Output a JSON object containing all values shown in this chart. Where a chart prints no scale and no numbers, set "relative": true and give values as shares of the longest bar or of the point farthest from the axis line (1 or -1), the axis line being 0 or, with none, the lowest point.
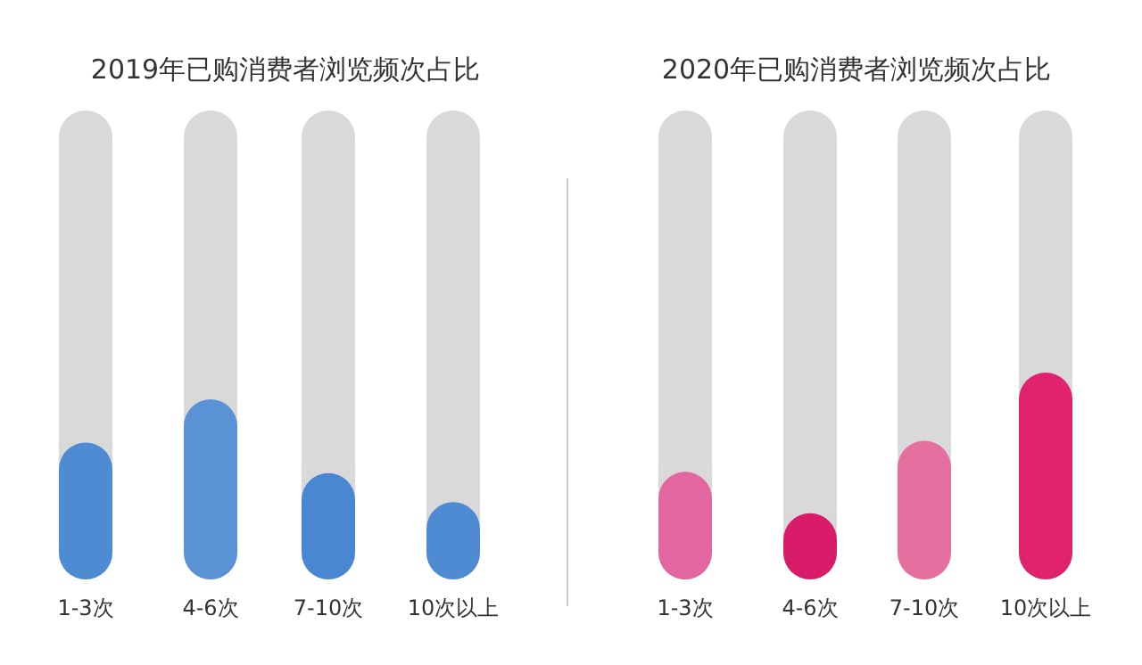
{
  "chart_data": [
    {
      "type": "bar",
      "title": "2019年已购消费者浏览频次占比",
      "relative": true,
      "categories": [
        "1-3次",
        "4-6次",
        "7-10次",
        "10次以上"
      ],
      "values": [
        0.76,
        1,
        0.59,
        0.43
      ],
      "colors": [
        "#4f8bd3",
        "#5a92d6",
        "#4a87d2",
        "#4f8bd3"
      ]
    },
    {
      "type": "bar",
      "title": "2020年已购消费者浏览频次占比",
      "relative": true,
      "categories": [
        "1-3次",
        "4-6次",
        "7-10次",
        "10次以上"
      ],
      "values": [
        0.52,
        0.32,
        0.67,
        1
      ],
      "colors": [
        "#e2669f",
        "#d91c6a",
        "#e5709f",
        "#e0226f"
      ]
    }
  ]
}
